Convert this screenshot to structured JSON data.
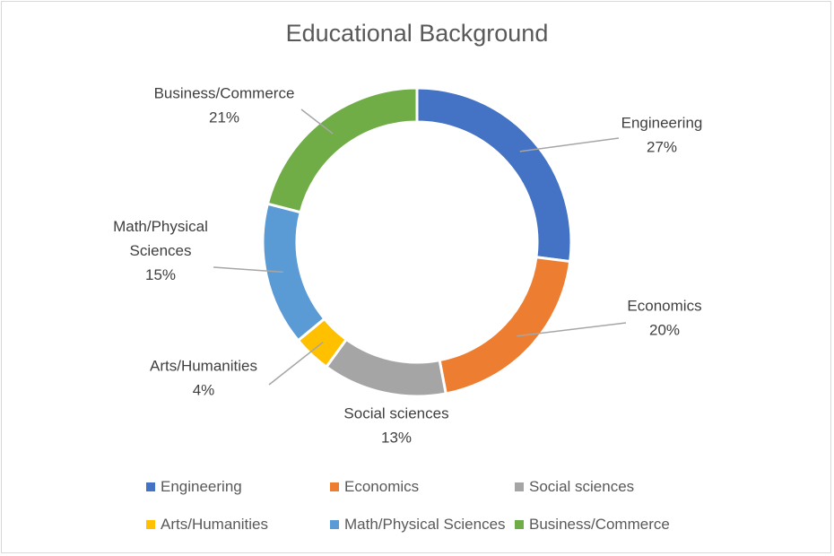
{
  "chart_data": {
    "type": "pie",
    "style": "doughnut",
    "title": "Educational Background",
    "categories": [
      "Engineering",
      "Economics",
      "Social sciences",
      "Arts/Humanities",
      "Math/Physical Sciences",
      "Business/Commerce"
    ],
    "values": [
      27,
      20,
      13,
      4,
      15,
      21
    ],
    "value_labels": [
      "27%",
      "20%",
      "13%",
      "4%",
      "15%",
      "21%"
    ],
    "label_lines": [
      [
        "Engineering"
      ],
      [
        "Economics"
      ],
      [
        "Social sciences"
      ],
      [
        "Arts/Humanities"
      ],
      [
        "Math/Physical",
        "Sciences"
      ],
      [
        "Business/Commerce"
      ]
    ],
    "colors": [
      "#4472c4",
      "#ed7d31",
      "#a5a5a5",
      "#ffc000",
      "#5b9bd5",
      "#70ad47"
    ],
    "legend_position": "bottom"
  }
}
